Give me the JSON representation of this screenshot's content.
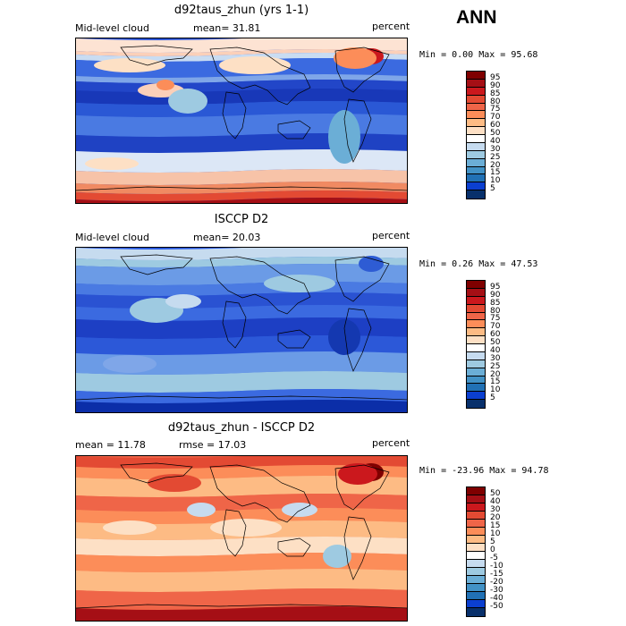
{
  "header": {
    "season": "ANN"
  },
  "panels": [
    {
      "title": "d92taus_zhun (yrs 1-1)",
      "left_label": "Mid-level cloud",
      "center_label": "mean=  31.81",
      "right_label": "percent",
      "minmax": "Min =   0.00 Max =  95.68",
      "colorbar": {
        "labels": [
          "95",
          "90",
          "85",
          "80",
          "75",
          "70",
          "60",
          "50",
          "40",
          "30",
          "25",
          "20",
          "15",
          "10",
          "5"
        ],
        "colors": [
          "#7f0000",
          "#a50f15",
          "#cb181d",
          "#e34a33",
          "#ef6548",
          "#fc8d59",
          "#fdbb84",
          "#fde0c5",
          "#ffffff",
          "#c6dbef",
          "#9ecae1",
          "#6baed6",
          "#4292c6",
          "#2171b5",
          "#0b3fd0",
          "#08306b"
        ]
      },
      "field": "model"
    },
    {
      "title": "ISCCP D2",
      "left_label": "Mid-level cloud",
      "center_label": "mean=  20.03",
      "right_label": "percent",
      "minmax": "Min =   0.26 Max =  47.53",
      "colorbar": {
        "labels": [
          "95",
          "90",
          "85",
          "80",
          "75",
          "70",
          "60",
          "50",
          "40",
          "30",
          "25",
          "20",
          "15",
          "10",
          "5"
        ],
        "colors": [
          "#7f0000",
          "#a50f15",
          "#cb181d",
          "#e34a33",
          "#ef6548",
          "#fc8d59",
          "#fdbb84",
          "#fde0c5",
          "#ffffff",
          "#c6dbef",
          "#9ecae1",
          "#6baed6",
          "#4292c6",
          "#2171b5",
          "#0b3fd0",
          "#08306b"
        ]
      },
      "field": "obs"
    },
    {
      "title": "d92taus_zhun - ISCCP D2",
      "left_label": "mean =  11.78",
      "center_label": "rmse =  17.03",
      "right_label": "percent",
      "minmax": "Min = -23.96 Max =  94.78",
      "colorbar": {
        "labels": [
          "50",
          "40",
          "30",
          "20",
          "15",
          "10",
          "5",
          "0",
          "-5",
          "-10",
          "-15",
          "-20",
          "-30",
          "-40",
          "-50"
        ],
        "colors": [
          "#7f0000",
          "#a50f15",
          "#cb181d",
          "#e34a33",
          "#ef6548",
          "#fc8d59",
          "#fdbb84",
          "#fde0c5",
          "#ffffff",
          "#c6dbef",
          "#9ecae1",
          "#6baed6",
          "#4292c6",
          "#2171b5",
          "#0b3fd0",
          "#08306b"
        ]
      },
      "field": "diff"
    }
  ]
}
